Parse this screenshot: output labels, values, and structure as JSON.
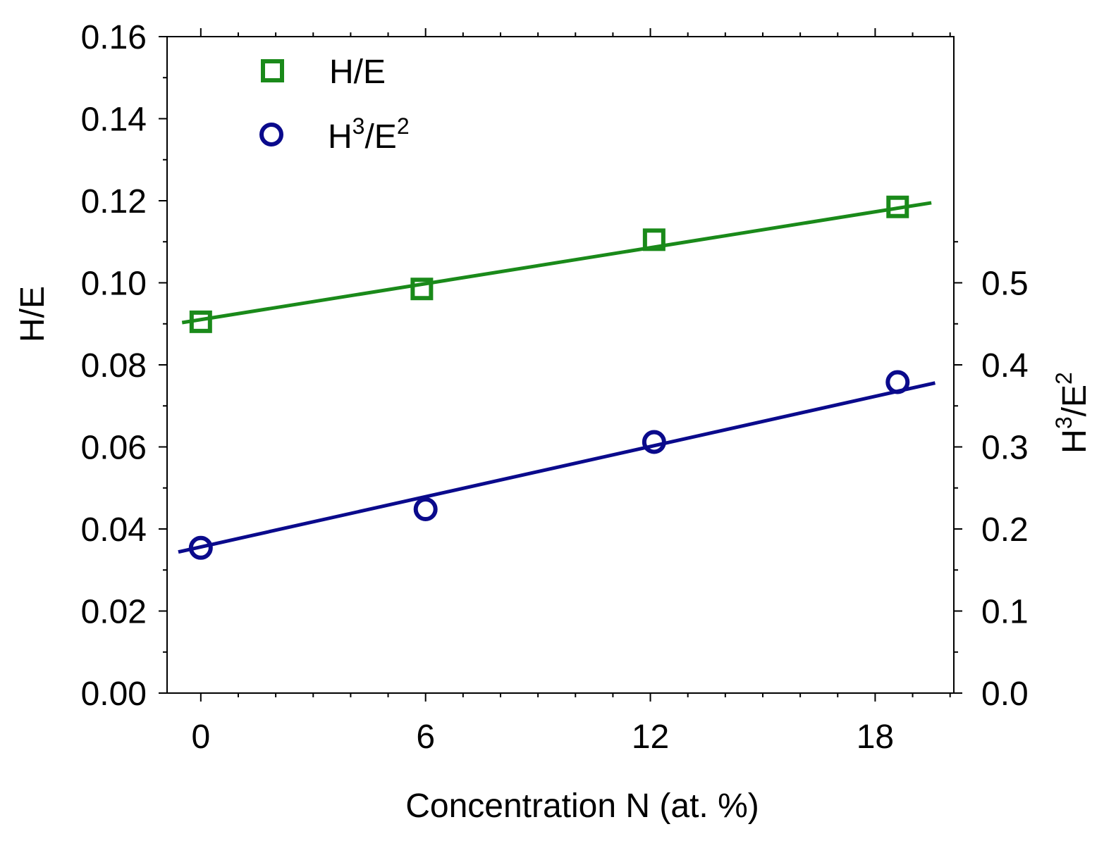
{
  "chart_data": {
    "type": "scatter",
    "xlabel": "Concentration N  (at. %)",
    "ylabel_left": "H/E",
    "ylabel_right": {
      "base": "H",
      "sup1": "3",
      "mid": "/E",
      "sup2": "2"
    },
    "xlim": [
      -0.9,
      20.1
    ],
    "ylim_left": [
      0,
      0.16
    ],
    "ylim_right": [
      0,
      0.8
    ],
    "xticks": [
      0,
      6,
      12,
      18
    ],
    "xtick_labels": [
      "0",
      "6",
      "12",
      "18"
    ],
    "yticks_left": [
      0,
      0.02,
      0.04,
      0.06,
      0.08,
      0.1,
      0.12,
      0.14,
      0.16
    ],
    "ytick_labels_left": [
      "0.00",
      "0.02",
      "0.04",
      "0.06",
      "0.08",
      "0.10",
      "0.12",
      "0.14",
      "0.16"
    ],
    "yticks_right": [
      0,
      0.1,
      0.2,
      0.3,
      0.4,
      0.5
    ],
    "ytick_labels_right": [
      "0.0",
      "0.1",
      "0.2",
      "0.3",
      "0.4",
      "0.5"
    ],
    "legend_position": "top-left",
    "series": [
      {
        "name": "H/E",
        "legend_label": "H/E",
        "axis": "left",
        "marker": "square",
        "color": "#1a8a1a",
        "x": [
          0,
          5.9,
          12.1,
          18.6
        ],
        "y": [
          0.0905,
          0.0985,
          0.1105,
          0.1185
        ],
        "fit": {
          "x": [
            -0.5,
            19.5
          ],
          "y": [
            0.0903,
            0.1195
          ]
        }
      },
      {
        "name": "H3/E2",
        "legend_label": {
          "base": "H",
          "sup1": "3",
          "mid": "/E",
          "sup2": "2"
        },
        "axis": "right",
        "marker": "circle",
        "color": "#0a0a8c",
        "x": [
          0,
          6.0,
          12.1,
          18.6
        ],
        "y": [
          0.177,
          0.224,
          0.306,
          0.379
        ],
        "fit": {
          "x": [
            -0.6,
            19.6
          ],
          "y": [
            0.172,
            0.378
          ]
        }
      }
    ]
  }
}
